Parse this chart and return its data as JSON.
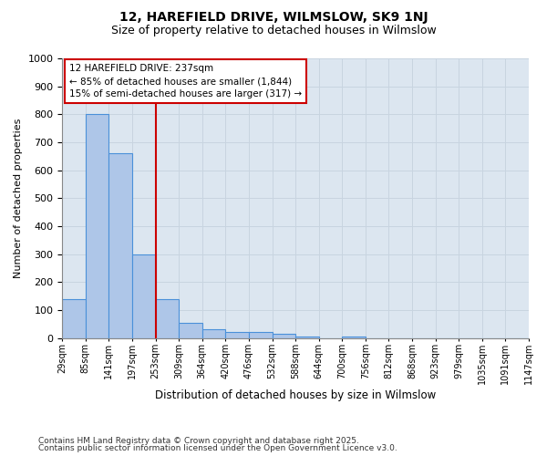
{
  "title1": "12, HAREFIELD DRIVE, WILMSLOW, SK9 1NJ",
  "title2": "Size of property relative to detached houses in Wilmslow",
  "xlabel": "Distribution of detached houses by size in Wilmslow",
  "ylabel": "Number of detached properties",
  "bar_color": "#aec6e8",
  "bar_edge_color": "#4a90d9",
  "vline_color": "#cc0000",
  "vline_x": 4,
  "bin_labels": [
    "29sqm",
    "85sqm",
    "141sqm",
    "197sqm",
    "253sqm",
    "309sqm",
    "364sqm",
    "420sqm",
    "476sqm",
    "532sqm",
    "588sqm",
    "644sqm",
    "700sqm",
    "756sqm",
    "812sqm",
    "868sqm",
    "923sqm",
    "979sqm",
    "1035sqm",
    "1091sqm",
    "1147sqm"
  ],
  "values": [
    140,
    800,
    660,
    300,
    140,
    55,
    30,
    20,
    20,
    15,
    5,
    0,
    5,
    0,
    0,
    0,
    0,
    0,
    0,
    0
  ],
  "ylim": [
    0,
    1000
  ],
  "yticks": [
    0,
    100,
    200,
    300,
    400,
    500,
    600,
    700,
    800,
    900,
    1000
  ],
  "annotation_text": "12 HAREFIELD DRIVE: 237sqm\n← 85% of detached houses are smaller (1,844)\n15% of semi-detached houses are larger (317) →",
  "annotation_box_color": "#ffffff",
  "annotation_box_edge": "#cc0000",
  "grid_color": "#c8d4e0",
  "bg_color": "#dce6f0",
  "footer1": "Contains HM Land Registry data © Crown copyright and database right 2025.",
  "footer2": "Contains public sector information licensed under the Open Government Licence v3.0."
}
